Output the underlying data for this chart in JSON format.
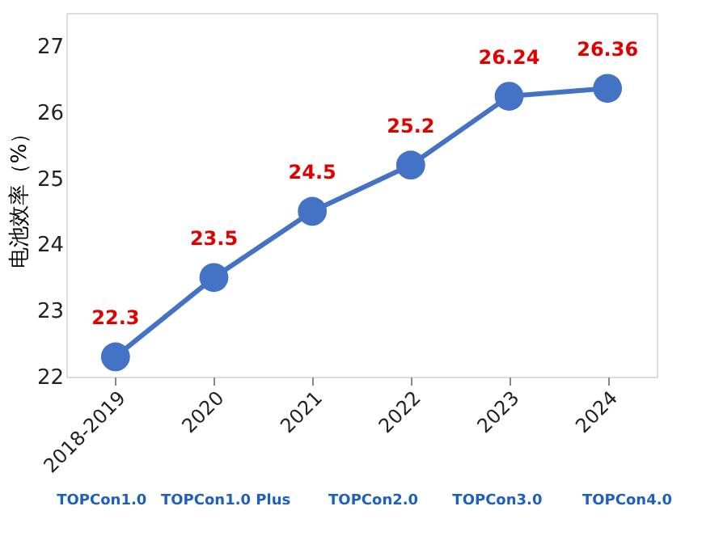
{
  "chart_data": {
    "type": "line",
    "ylabel": "电池效率（%）",
    "categories": [
      "2018-2019",
      "2020",
      "2021",
      "2022",
      "2023",
      "2024"
    ],
    "series": [
      {
        "color": "#4472c4",
        "values": [
          22.3,
          23.5,
          24.5,
          25.2,
          26.24,
          26.36
        ]
      }
    ],
    "data_labels": true,
    "marker": "circle",
    "line_style": "solid",
    "ylim": [
      22,
      27.5
    ],
    "yticks": [
      22,
      23,
      24,
      25,
      26,
      27
    ],
    "grid": false,
    "annotations": [
      "TOPCon1.0",
      "TOPCon1.0 Plus",
      "TOPCon2.0",
      "TOPCon3.0",
      "TOPCon4.0"
    ]
  }
}
